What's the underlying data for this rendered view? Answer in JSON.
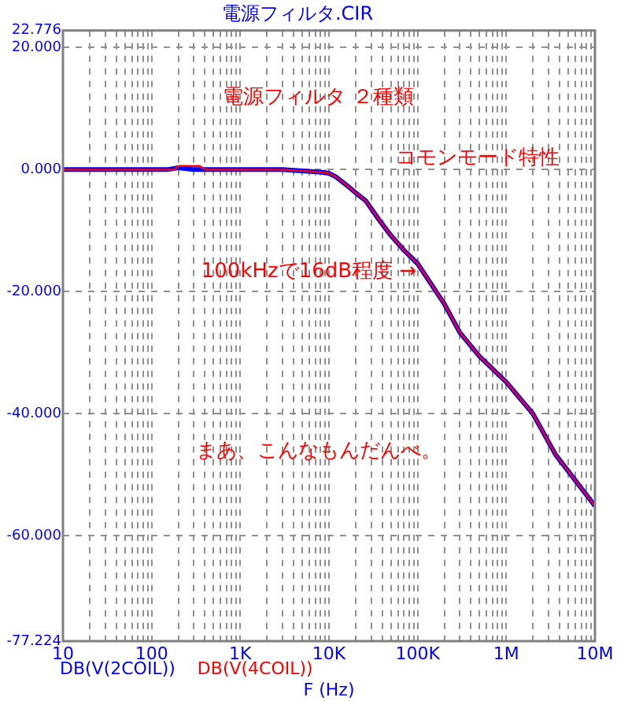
{
  "chart_data": {
    "type": "line",
    "title": "電源フィルタ.CIR",
    "xlabel": "F (Hz)",
    "log": "x",
    "grid": true,
    "legend": "bottom",
    "marker": "none",
    "line_style": "solid",
    "xlim": [
      10,
      10000000
    ],
    "xticks": [
      {
        "value": 10,
        "label": "10"
      },
      {
        "value": 20,
        "label": null
      },
      {
        "value": 30,
        "label": null
      },
      {
        "value": 40,
        "label": null
      },
      {
        "value": 50,
        "label": null
      },
      {
        "value": 60,
        "label": null
      },
      {
        "value": 70,
        "label": null
      },
      {
        "value": 80,
        "label": null
      },
      {
        "value": 90,
        "label": null
      },
      {
        "value": 100,
        "label": "100"
      },
      {
        "value": 200,
        "label": null
      },
      {
        "value": 300,
        "label": null
      },
      {
        "value": 400,
        "label": null
      },
      {
        "value": 500,
        "label": null
      },
      {
        "value": 600,
        "label": null
      },
      {
        "value": 700,
        "label": null
      },
      {
        "value": 800,
        "label": null
      },
      {
        "value": 900,
        "label": null
      },
      {
        "value": 1000,
        "label": "1K"
      },
      {
        "value": 2000,
        "label": null
      },
      {
        "value": 3000,
        "label": null
      },
      {
        "value": 4000,
        "label": null
      },
      {
        "value": 5000,
        "label": null
      },
      {
        "value": 6000,
        "label": null
      },
      {
        "value": 7000,
        "label": null
      },
      {
        "value": 8000,
        "label": null
      },
      {
        "value": 9000,
        "label": null
      },
      {
        "value": 10000,
        "label": "10K"
      },
      {
        "value": 20000,
        "label": null
      },
      {
        "value": 30000,
        "label": null
      },
      {
        "value": 40000,
        "label": null
      },
      {
        "value": 50000,
        "label": null
      },
      {
        "value": 60000,
        "label": null
      },
      {
        "value": 70000,
        "label": null
      },
      {
        "value": 80000,
        "label": null
      },
      {
        "value": 90000,
        "label": null
      },
      {
        "value": 100000,
        "label": "100K"
      },
      {
        "value": 200000,
        "label": null
      },
      {
        "value": 300000,
        "label": null
      },
      {
        "value": 400000,
        "label": null
      },
      {
        "value": 500000,
        "label": null
      },
      {
        "value": 600000,
        "label": null
      },
      {
        "value": 700000,
        "label": null
      },
      {
        "value": 800000,
        "label": null
      },
      {
        "value": 900000,
        "label": null
      },
      {
        "value": 1000000,
        "label": "1M"
      },
      {
        "value": 2000000,
        "label": null
      },
      {
        "value": 3000000,
        "label": null
      },
      {
        "value": 4000000,
        "label": null
      },
      {
        "value": 5000000,
        "label": null
      },
      {
        "value": 6000000,
        "label": null
      },
      {
        "value": 7000000,
        "label": null
      },
      {
        "value": 8000000,
        "label": null
      },
      {
        "value": 9000000,
        "label": null
      },
      {
        "value": 10000000,
        "label": "10M"
      }
    ],
    "ylim": [
      -77.224,
      22.776
    ],
    "yticks": [
      {
        "value": -77.224,
        "label": "-77.224"
      },
      {
        "value": -60,
        "label": "-60.000"
      },
      {
        "value": -40,
        "label": "-40.000"
      },
      {
        "value": -20,
        "label": "-20.000"
      },
      {
        "value": 0,
        "label": "0.000"
      },
      {
        "value": 20,
        "label": "20.000"
      },
      {
        "value": 22.776,
        "label": "22.776"
      }
    ],
    "series": [
      {
        "name": "DB(V(2COIL))",
        "color": "#0000ff",
        "x": [
          10,
          100,
          150,
          200,
          300,
          1000,
          3000,
          5000,
          8000,
          10000,
          12000,
          16000,
          20000,
          26000,
          35000,
          50000,
          70000,
          100000,
          200000,
          300000,
          500000,
          1000000,
          2000000,
          3600000,
          10000000
        ],
        "values": [
          0,
          0,
          0,
          0.3,
          0,
          0,
          0,
          -0.2,
          -0.4,
          -0.6,
          -1.2,
          -2.6,
          -3.8,
          -5.1,
          -7.8,
          -10.8,
          -13.2,
          -15.4,
          -22,
          -26.7,
          -30.6,
          -34.8,
          -40,
          -46.7,
          -55.1
        ]
      },
      {
        "name": "DB(V(4COIL))",
        "color": "#ff0000",
        "x": [
          10,
          100,
          180,
          200,
          350,
          400,
          1000,
          3000,
          5000,
          8000,
          10000,
          12000,
          16000,
          20000,
          26000,
          35000,
          50000,
          70000,
          100000,
          200000,
          300000,
          500000,
          1000000,
          2000000,
          3600000,
          10000000
        ],
        "values": [
          0,
          0,
          0,
          0.6,
          0.6,
          0,
          0,
          0,
          -0.2,
          -0.4,
          -0.6,
          -1.2,
          -2.6,
          -3.8,
          -5.1,
          -7.8,
          -10.8,
          -13.2,
          -15.4,
          -22,
          -26.7,
          -30.6,
          -34.8,
          -40,
          -46.7,
          -55.1
        ]
      }
    ],
    "annotations": [
      "電源フィルタ ２種類",
      "コモンモード特性",
      "100kHzで16dB程度 →",
      "まあ、こんなもんだんべ。"
    ]
  }
}
